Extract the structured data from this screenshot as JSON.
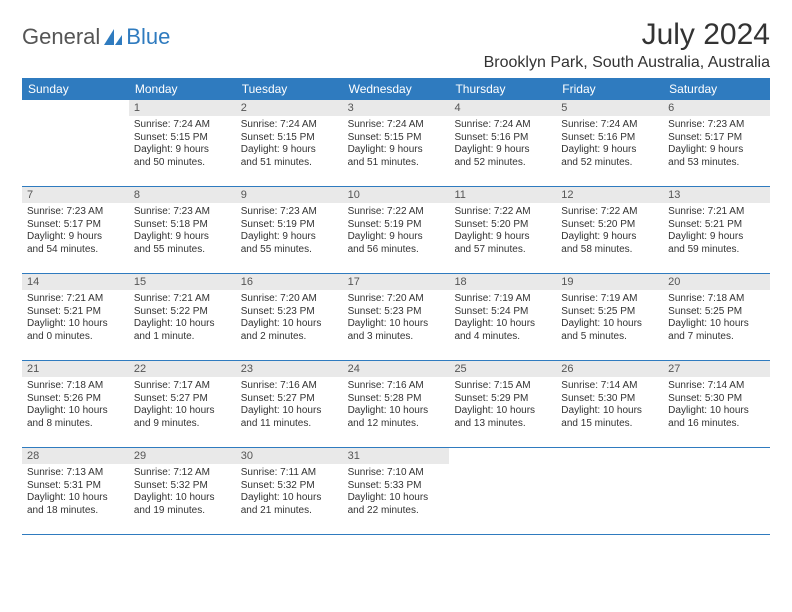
{
  "logo": {
    "part1": "General",
    "part2": "Blue",
    "shape_color": "#2f7bbf"
  },
  "title": "July 2024",
  "location": "Brooklyn Park, South Australia, Australia",
  "header_bg": "#2f7bbf",
  "daynum_bg": "#e9e9e9",
  "border_color": "#2f7bbf",
  "dow": [
    "Sunday",
    "Monday",
    "Tuesday",
    "Wednesday",
    "Thursday",
    "Friday",
    "Saturday"
  ],
  "weeks": [
    [
      {
        "n": "",
        "lines": [
          "",
          "",
          "",
          ""
        ]
      },
      {
        "n": "1",
        "lines": [
          "Sunrise: 7:24 AM",
          "Sunset: 5:15 PM",
          "Daylight: 9 hours",
          "and 50 minutes."
        ]
      },
      {
        "n": "2",
        "lines": [
          "Sunrise: 7:24 AM",
          "Sunset: 5:15 PM",
          "Daylight: 9 hours",
          "and 51 minutes."
        ]
      },
      {
        "n": "3",
        "lines": [
          "Sunrise: 7:24 AM",
          "Sunset: 5:15 PM",
          "Daylight: 9 hours",
          "and 51 minutes."
        ]
      },
      {
        "n": "4",
        "lines": [
          "Sunrise: 7:24 AM",
          "Sunset: 5:16 PM",
          "Daylight: 9 hours",
          "and 52 minutes."
        ]
      },
      {
        "n": "5",
        "lines": [
          "Sunrise: 7:24 AM",
          "Sunset: 5:16 PM",
          "Daylight: 9 hours",
          "and 52 minutes."
        ]
      },
      {
        "n": "6",
        "lines": [
          "Sunrise: 7:23 AM",
          "Sunset: 5:17 PM",
          "Daylight: 9 hours",
          "and 53 minutes."
        ]
      }
    ],
    [
      {
        "n": "7",
        "lines": [
          "Sunrise: 7:23 AM",
          "Sunset: 5:17 PM",
          "Daylight: 9 hours",
          "and 54 minutes."
        ]
      },
      {
        "n": "8",
        "lines": [
          "Sunrise: 7:23 AM",
          "Sunset: 5:18 PM",
          "Daylight: 9 hours",
          "and 55 minutes."
        ]
      },
      {
        "n": "9",
        "lines": [
          "Sunrise: 7:23 AM",
          "Sunset: 5:19 PM",
          "Daylight: 9 hours",
          "and 55 minutes."
        ]
      },
      {
        "n": "10",
        "lines": [
          "Sunrise: 7:22 AM",
          "Sunset: 5:19 PM",
          "Daylight: 9 hours",
          "and 56 minutes."
        ]
      },
      {
        "n": "11",
        "lines": [
          "Sunrise: 7:22 AM",
          "Sunset: 5:20 PM",
          "Daylight: 9 hours",
          "and 57 minutes."
        ]
      },
      {
        "n": "12",
        "lines": [
          "Sunrise: 7:22 AM",
          "Sunset: 5:20 PM",
          "Daylight: 9 hours",
          "and 58 minutes."
        ]
      },
      {
        "n": "13",
        "lines": [
          "Sunrise: 7:21 AM",
          "Sunset: 5:21 PM",
          "Daylight: 9 hours",
          "and 59 minutes."
        ]
      }
    ],
    [
      {
        "n": "14",
        "lines": [
          "Sunrise: 7:21 AM",
          "Sunset: 5:21 PM",
          "Daylight: 10 hours",
          "and 0 minutes."
        ]
      },
      {
        "n": "15",
        "lines": [
          "Sunrise: 7:21 AM",
          "Sunset: 5:22 PM",
          "Daylight: 10 hours",
          "and 1 minute."
        ]
      },
      {
        "n": "16",
        "lines": [
          "Sunrise: 7:20 AM",
          "Sunset: 5:23 PM",
          "Daylight: 10 hours",
          "and 2 minutes."
        ]
      },
      {
        "n": "17",
        "lines": [
          "Sunrise: 7:20 AM",
          "Sunset: 5:23 PM",
          "Daylight: 10 hours",
          "and 3 minutes."
        ]
      },
      {
        "n": "18",
        "lines": [
          "Sunrise: 7:19 AM",
          "Sunset: 5:24 PM",
          "Daylight: 10 hours",
          "and 4 minutes."
        ]
      },
      {
        "n": "19",
        "lines": [
          "Sunrise: 7:19 AM",
          "Sunset: 5:25 PM",
          "Daylight: 10 hours",
          "and 5 minutes."
        ]
      },
      {
        "n": "20",
        "lines": [
          "Sunrise: 7:18 AM",
          "Sunset: 5:25 PM",
          "Daylight: 10 hours",
          "and 7 minutes."
        ]
      }
    ],
    [
      {
        "n": "21",
        "lines": [
          "Sunrise: 7:18 AM",
          "Sunset: 5:26 PM",
          "Daylight: 10 hours",
          "and 8 minutes."
        ]
      },
      {
        "n": "22",
        "lines": [
          "Sunrise: 7:17 AM",
          "Sunset: 5:27 PM",
          "Daylight: 10 hours",
          "and 9 minutes."
        ]
      },
      {
        "n": "23",
        "lines": [
          "Sunrise: 7:16 AM",
          "Sunset: 5:27 PM",
          "Daylight: 10 hours",
          "and 11 minutes."
        ]
      },
      {
        "n": "24",
        "lines": [
          "Sunrise: 7:16 AM",
          "Sunset: 5:28 PM",
          "Daylight: 10 hours",
          "and 12 minutes."
        ]
      },
      {
        "n": "25",
        "lines": [
          "Sunrise: 7:15 AM",
          "Sunset: 5:29 PM",
          "Daylight: 10 hours",
          "and 13 minutes."
        ]
      },
      {
        "n": "26",
        "lines": [
          "Sunrise: 7:14 AM",
          "Sunset: 5:30 PM",
          "Daylight: 10 hours",
          "and 15 minutes."
        ]
      },
      {
        "n": "27",
        "lines": [
          "Sunrise: 7:14 AM",
          "Sunset: 5:30 PM",
          "Daylight: 10 hours",
          "and 16 minutes."
        ]
      }
    ],
    [
      {
        "n": "28",
        "lines": [
          "Sunrise: 7:13 AM",
          "Sunset: 5:31 PM",
          "Daylight: 10 hours",
          "and 18 minutes."
        ]
      },
      {
        "n": "29",
        "lines": [
          "Sunrise: 7:12 AM",
          "Sunset: 5:32 PM",
          "Daylight: 10 hours",
          "and 19 minutes."
        ]
      },
      {
        "n": "30",
        "lines": [
          "Sunrise: 7:11 AM",
          "Sunset: 5:32 PM",
          "Daylight: 10 hours",
          "and 21 minutes."
        ]
      },
      {
        "n": "31",
        "lines": [
          "Sunrise: 7:10 AM",
          "Sunset: 5:33 PM",
          "Daylight: 10 hours",
          "and 22 minutes."
        ]
      },
      {
        "n": "",
        "lines": [
          "",
          "",
          "",
          ""
        ]
      },
      {
        "n": "",
        "lines": [
          "",
          "",
          "",
          ""
        ]
      },
      {
        "n": "",
        "lines": [
          "",
          "",
          "",
          ""
        ]
      }
    ]
  ]
}
